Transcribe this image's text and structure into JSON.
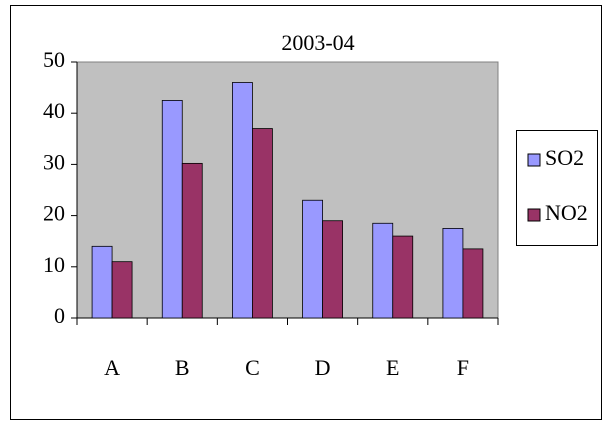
{
  "chart_data": {
    "type": "bar",
    "title": "2003-04",
    "categories": [
      "A",
      "B",
      "C",
      "D",
      "E",
      "F"
    ],
    "series": [
      {
        "name": "SO2",
        "color": "#9999ff",
        "values": [
          14,
          42.5,
          46,
          23,
          18.5,
          17.5
        ]
      },
      {
        "name": "NO2",
        "color": "#993366",
        "values": [
          11,
          30.2,
          37,
          19,
          16,
          13.5
        ]
      }
    ],
    "ylim": [
      0,
      50
    ],
    "yticks": [
      0,
      10,
      20,
      30,
      40,
      50
    ],
    "legend": "right",
    "plot_background": "#c0c0c0"
  }
}
